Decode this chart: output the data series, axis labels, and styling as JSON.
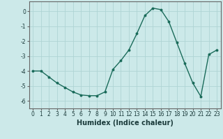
{
  "x": [
    0,
    1,
    2,
    3,
    4,
    5,
    6,
    7,
    8,
    9,
    10,
    11,
    12,
    13,
    14,
    15,
    16,
    17,
    18,
    19,
    20,
    21,
    22,
    23
  ],
  "y": [
    -4.0,
    -4.0,
    -4.4,
    -4.8,
    -5.1,
    -5.4,
    -5.6,
    -5.65,
    -5.65,
    -5.4,
    -3.9,
    -3.3,
    -2.6,
    -1.5,
    -0.3,
    0.2,
    0.1,
    -0.7,
    -2.1,
    -3.5,
    -4.8,
    -5.7,
    -2.9,
    -2.6
  ],
  "line_color": "#1a6b5a",
  "marker": "o",
  "marker_size": 1.8,
  "line_width": 1.0,
  "xlabel": "Humidex (Indice chaleur)",
  "xlabel_fontsize": 7,
  "xlabel_bold": true,
  "yticks": [
    0,
    -1,
    -2,
    -3,
    -4,
    -5,
    -6
  ],
  "ytick_labels": [
    "0",
    "-1",
    "-2",
    "-3",
    "-4",
    "-5",
    "-6"
  ],
  "xticks": [
    0,
    1,
    2,
    3,
    4,
    5,
    6,
    7,
    8,
    9,
    10,
    11,
    12,
    13,
    14,
    15,
    16,
    17,
    18,
    19,
    20,
    21,
    22,
    23
  ],
  "xtick_labels": [
    "0",
    "1",
    "2",
    "3",
    "4",
    "5",
    "6",
    "7",
    "8",
    "9",
    "10",
    "11",
    "12",
    "13",
    "14",
    "15",
    "16",
    "17",
    "18",
    "19",
    "20",
    "21",
    "22",
    "23"
  ],
  "xlim": [
    -0.5,
    23.5
  ],
  "ylim": [
    -6.5,
    0.65
  ],
  "background_color": "#cce9e9",
  "grid_color": "#afd4d4",
  "grid_linewidth": 0.6,
  "tick_fontsize": 5.5,
  "spine_color": "#666666",
  "spine_linewidth": 0.8
}
